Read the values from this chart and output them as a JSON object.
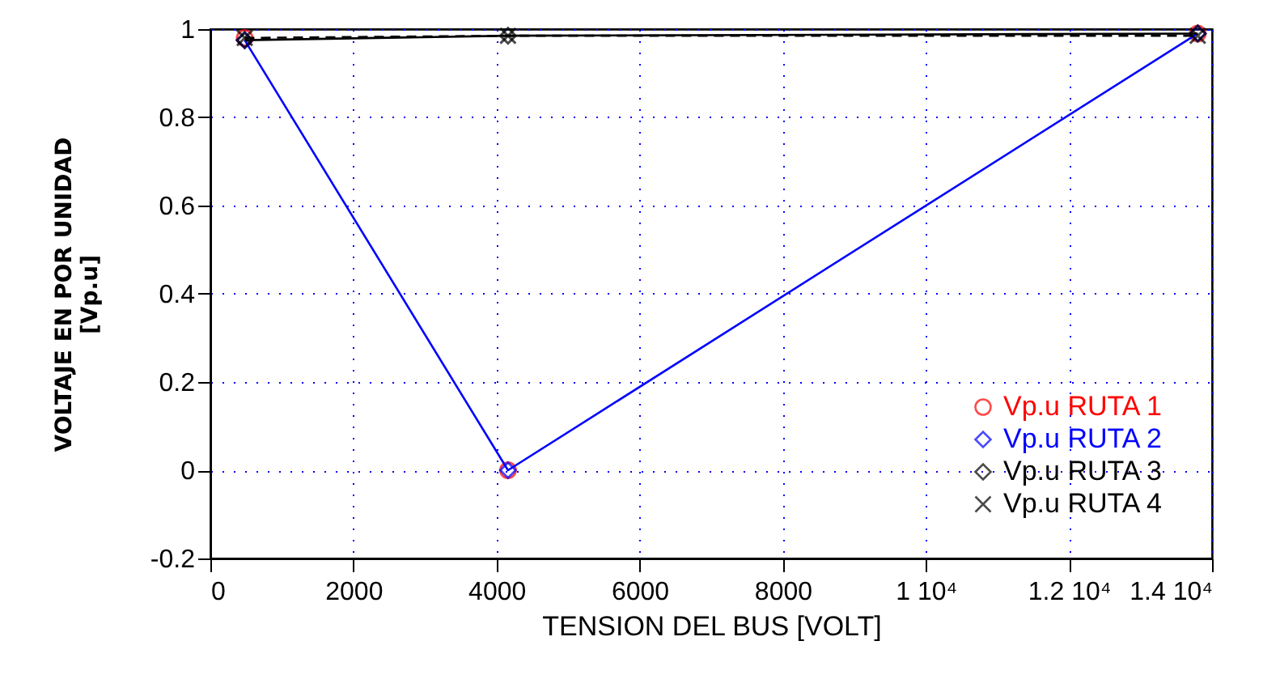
{
  "chart_data": {
    "type": "line",
    "xlabel": "TENSION DEL BUS [VOLT]",
    "ylabel": "VOLTAJE EN POR UNIDAD\n[Vp.u]",
    "x": [
      480,
      4160,
      13800
    ],
    "series": [
      {
        "name": "Vp.u  RUTA 1",
        "type": "scatter",
        "color": "#ff0000",
        "marker": "circle",
        "values": [
          0.98,
          0,
          0.99
        ]
      },
      {
        "name": "Vp.u RUTA 2",
        "color": "#0000ff",
        "marker": "diamond",
        "line_style": "solid",
        "values": [
          0.975,
          0,
          0.99
        ]
      },
      {
        "name": "Vp.u  RUTA 3",
        "color": "#000000",
        "marker": "diamond",
        "line_style": "solid",
        "values": [
          0.975,
          0.985,
          0.99
        ]
      },
      {
        "name": "Vp.u  RUTA 4",
        "color": "#000000",
        "marker": "cross",
        "line_style": "dashed",
        "values": [
          0.98,
          0.985,
          0.985
        ]
      }
    ],
    "xlim": [
      0,
      14000
    ],
    "xticks": [
      0,
      2000,
      4000,
      6000,
      8000,
      {
        "value": 10000,
        "label": "1 10⁴"
      },
      {
        "value": 12000,
        "label": "1.2 10⁴"
      },
      {
        "value": 14000,
        "label": "1.4 10⁴"
      }
    ],
    "ylim": [
      -0.2,
      1
    ],
    "yticks": [
      -0.2,
      0,
      0.2,
      0.4,
      0.6,
      0.8,
      1
    ],
    "grid": true,
    "legend": "bottom right"
  }
}
